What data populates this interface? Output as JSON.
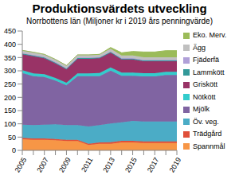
{
  "chart_data": {
    "type": "area",
    "title": "Produktionsvärdets utveckling",
    "subtitle": "Norrbottens län (Miljoner kr i 2019 års penningvärde)",
    "stacked": true,
    "grid": false,
    "legend": "right",
    "categories": [
      "2005",
      null,
      "2007",
      null,
      "2009",
      null,
      "2011",
      null,
      "2013",
      null,
      "2015",
      null,
      "2017",
      null,
      "2019"
    ],
    "ylim": [
      0,
      450
    ],
    "yticks": [
      0,
      50,
      100,
      150,
      200,
      250,
      300,
      350,
      400,
      450
    ],
    "series": [
      {
        "name": "Spannmål",
        "color": "#f79646",
        "values": [
          42,
          40,
          40,
          38,
          35,
          35,
          20,
          25,
          25,
          30,
          30,
          28,
          28,
          28,
          28
        ]
      },
      {
        "name": "Trädgård",
        "color": "#e0503a",
        "values": [
          5,
          5,
          5,
          5,
          5,
          5,
          5,
          5,
          6,
          6,
          6,
          6,
          6,
          6,
          6
        ]
      },
      {
        "name": "Öv. veg.",
        "color": "#4bacc6",
        "values": [
          50,
          50,
          52,
          55,
          55,
          55,
          65,
          65,
          70,
          70,
          75,
          75,
          75,
          75,
          75
        ]
      },
      {
        "name": "Mjölk",
        "color": "#8064a2",
        "values": [
          195,
          185,
          180,
          165,
          150,
          185,
          190,
          185,
          200,
          175,
          170,
          170,
          170,
          175,
          175
        ]
      },
      {
        "name": "Nötkött",
        "color": "#33cccc",
        "values": [
          10,
          10,
          10,
          10,
          10,
          10,
          10,
          12,
          12,
          12,
          12,
          12,
          12,
          12,
          12
        ]
      },
      {
        "name": "Griskött",
        "color": "#993366",
        "values": [
          60,
          65,
          60,
          55,
          50,
          55,
          55,
          55,
          55,
          50,
          50,
          45,
          45,
          40,
          40
        ]
      },
      {
        "name": "Lammkött",
        "color": "#339999",
        "values": [
          3,
          3,
          3,
          3,
          3,
          3,
          3,
          3,
          3,
          3,
          3,
          3,
          3,
          3,
          3
        ]
      },
      {
        "name": "Fjäderfä",
        "color": "#b0a0d8",
        "values": [
          2,
          2,
          2,
          2,
          2,
          2,
          2,
          2,
          2,
          2,
          2,
          2,
          2,
          2,
          2
        ]
      },
      {
        "name": "Ägg",
        "color": "#c0c0c0",
        "values": [
          10,
          10,
          10,
          10,
          10,
          10,
          10,
          10,
          10,
          10,
          10,
          10,
          10,
          10,
          10
        ]
      },
      {
        "name": "Eko. Merv.",
        "color": "#9bbb59",
        "values": [
          0,
          0,
          0,
          0,
          0,
          0,
          0,
          0,
          5,
          10,
          15,
          20,
          20,
          25,
          25
        ]
      }
    ]
  }
}
